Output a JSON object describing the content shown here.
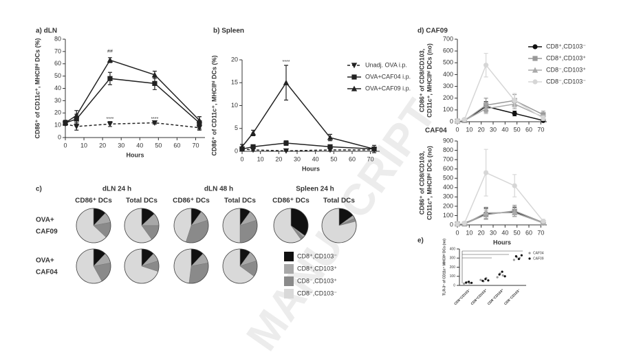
{
  "watermark": "MANUSCRIPT",
  "chart_data": [
    {
      "type": "line",
      "title": "a) dLN",
      "x": [
        0,
        6,
        24,
        48,
        72
      ],
      "xlim": [
        0,
        75
      ],
      "xticks": [
        0,
        10,
        20,
        30,
        40,
        50,
        60,
        70
      ],
      "ylim": [
        0,
        80
      ],
      "yticks": [
        0,
        10,
        20,
        30,
        40,
        50,
        60,
        70,
        80
      ],
      "xlabel": "Hours",
      "ylabel": [
        "CD86⁺ of CD11c⁺, MHCIIʰⁱ DCs (%)"
      ],
      "legend": false,
      "series": [
        {
          "name": "Unadj. OVA i.p.",
          "color": "#222222",
          "dash": true,
          "marker": "triangle-down",
          "values": [
            11,
            9,
            11,
            12,
            8
          ],
          "errors": [
            1,
            3,
            2,
            1,
            2
          ]
        },
        {
          "name": "OVA+CAF04 i.p.",
          "color": "#222222",
          "dash": false,
          "marker": "square",
          "values": [
            12,
            15,
            48,
            44,
            12
          ],
          "errors": [
            2,
            4,
            5,
            5,
            5
          ]
        },
        {
          "name": "OVA+CAF09 i.p.",
          "color": "#222222",
          "dash": false,
          "marker": "triangle",
          "values": [
            12,
            18,
            63,
            51,
            14
          ],
          "errors": [
            2,
            4,
            2,
            3,
            3
          ]
        }
      ],
      "annotations": [
        {
          "text": "##",
          "x": 24,
          "y": 70
        },
        {
          "text": "****",
          "x": 24,
          "y": 15
        },
        {
          "text": "****",
          "x": 48,
          "y": 15
        }
      ]
    },
    {
      "type": "line",
      "title": "b) Spleen",
      "x": [
        0,
        6,
        24,
        48,
        72
      ],
      "xlim": [
        0,
        75
      ],
      "xticks": [
        0,
        10,
        20,
        30,
        40,
        50,
        60,
        70
      ],
      "ylim": [
        0,
        20
      ],
      "yticks": [
        0,
        5,
        10,
        15,
        20
      ],
      "xlabel": "Hours",
      "ylabel": [
        "CD86⁺ of CD11c⁺, MHCIIʰⁱ DCs (%)"
      ],
      "legend": true,
      "series": [
        {
          "name": "Unadj. OVA i.p.",
          "color": "#222222",
          "dash": true,
          "marker": "triangle-down",
          "values": [
            0.5,
            0.3,
            0.1,
            0.3,
            0.3
          ],
          "errors": [
            0.3,
            0.2,
            0.1,
            0.2,
            0.2
          ]
        },
        {
          "name": "OVA+CAF04 i.p.",
          "color": "#222222",
          "dash": false,
          "marker": "square",
          "values": [
            0.5,
            1,
            1.8,
            1,
            0.5
          ],
          "errors": [
            0.3,
            0.3,
            0.5,
            0.4,
            0.3
          ]
        },
        {
          "name": "OVA+CAF09 i.p.",
          "color": "#222222",
          "dash": false,
          "marker": "triangle",
          "values": [
            1,
            4,
            15,
            3,
            0.5
          ],
          "errors": [
            0.5,
            0.6,
            3.8,
            0.7,
            0.8
          ]
        }
      ],
      "annotations": [
        {
          "text": "****",
          "x": 24,
          "y": 19.5
        }
      ]
    },
    {
      "type": "line",
      "title": "d) CAF09",
      "x": [
        0,
        6,
        24,
        48,
        72
      ],
      "xlim": [
        0,
        75
      ],
      "xticks": [
        0,
        10,
        20,
        30,
        40,
        50,
        60,
        70
      ],
      "ylim": [
        0,
        700
      ],
      "yticks": [
        0,
        100,
        200,
        300,
        400,
        500,
        600,
        700
      ],
      "ylabel": [
        "CD86⁺ of CD8/CD103,",
        "CD11c⁺, MHCIIʰⁱ DCs (no)"
      ],
      "legend": true,
      "series": [
        {
          "name": "CD8⁺,CD103⁻",
          "color": "#111111",
          "dash": false,
          "marker": "circle",
          "values": [
            5,
            10,
            130,
            70,
            10
          ],
          "errors": [
            3,
            5,
            40,
            20,
            5
          ]
        },
        {
          "name": "CD8⁺,CD103⁺",
          "color": "#999999",
          "dash": false,
          "marker": "square",
          "values": [
            5,
            10,
            140,
            180,
            60
          ],
          "errors": [
            3,
            5,
            60,
            50,
            30
          ]
        },
        {
          "name": "CD8⁻,CD103⁺",
          "color": "#aaaaaa",
          "dash": false,
          "marker": "triangle",
          "values": [
            5,
            10,
            110,
            150,
            40
          ],
          "errors": [
            3,
            5,
            40,
            40,
            20
          ]
        },
        {
          "name": "CD8⁻,CD103⁻",
          "color": "#d6d6d6",
          "dash": false,
          "marker": "circle",
          "values": [
            5,
            20,
            480,
            180,
            30
          ],
          "errors": [
            3,
            10,
            100,
            60,
            20
          ]
        }
      ]
    },
    {
      "type": "line",
      "title": "CAF04",
      "x": [
        0,
        6,
        24,
        48,
        72
      ],
      "xlim": [
        0,
        75
      ],
      "xticks": [
        0,
        10,
        20,
        30,
        40,
        50,
        60,
        70
      ],
      "ylim": [
        0,
        900
      ],
      "yticks": [
        0,
        100,
        200,
        300,
        400,
        500,
        600,
        700,
        800,
        900
      ],
      "xlabel": "Hours",
      "ylabel": [
        "CD86⁺ of CD8/CD103,",
        "CD11c⁺, MHCIIʰⁱ DCs (no)"
      ],
      "legend": false,
      "series": [
        {
          "name": "CD8⁺,CD103⁻",
          "color": "#111111",
          "dash": false,
          "marker": "circle",
          "values": [
            10,
            15,
            120,
            140,
            20
          ],
          "errors": [
            5,
            5,
            60,
            50,
            10
          ]
        },
        {
          "name": "CD8⁺,CD103⁺",
          "color": "#999999",
          "dash": false,
          "marker": "square",
          "values": [
            10,
            10,
            110,
            150,
            25
          ],
          "errors": [
            5,
            5,
            50,
            60,
            10
          ]
        },
        {
          "name": "CD8⁻,CD103⁺",
          "color": "#aaaaaa",
          "dash": false,
          "marker": "triangle",
          "values": [
            10,
            10,
            130,
            130,
            20
          ],
          "errors": [
            5,
            5,
            60,
            40,
            10
          ]
        },
        {
          "name": "CD8⁻,CD103⁻",
          "color": "#d6d6d6",
          "dash": false,
          "marker": "circle",
          "values": [
            10,
            20,
            560,
            420,
            40
          ],
          "errors": [
            5,
            10,
            250,
            120,
            20
          ]
        }
      ]
    },
    {
      "type": "pie",
      "title": "c)",
      "groups": [
        "dLN 24 h",
        "dLN 48 h",
        "Spleen 24 h"
      ],
      "subgroups": [
        "CD86⁺ DCs",
        "Total DCs",
        "CD86⁺ DCs",
        "Total DCs",
        "CD86⁺ DCs",
        "Total DCs"
      ],
      "categories": [
        "CD8⁺,CD103⁻",
        "CD8⁺,CD103⁺",
        "CD8⁻,CD103⁺",
        "CD8⁻,CD103⁻"
      ],
      "colors": [
        "#111111",
        "#a8a8a8",
        "#8a8a8a",
        "#d9d9d9"
      ],
      "rows": [
        {
          "name": [
            "OVA+",
            "CAF09"
          ],
          "pies": [
            [
              12,
              10,
              15,
              63
            ],
            [
              13,
              12,
              15,
              60
            ],
            [
              10,
              10,
              35,
              45
            ],
            [
              10,
              10,
              30,
              50
            ],
            [
              35,
              2,
              3,
              60
            ],
            [
              15,
              3,
              3,
              79
            ]
          ]
        },
        {
          "name": [
            "OVA+",
            "CAF04"
          ],
          "pies": [
            [
              12,
              10,
              20,
              58
            ],
            [
              12,
              8,
              10,
              70
            ],
            [
              12,
              10,
              30,
              48
            ],
            [
              10,
              10,
              15,
              65
            ]
          ]
        }
      ]
    },
    {
      "type": "scatter",
      "title": "e)",
      "categories": [
        "CD8⁺CD103⁻",
        "CD8⁺CD103⁺",
        "CD8⁻CD103⁺",
        "CD8⁻CD103⁻"
      ],
      "ylim": [
        0,
        400
      ],
      "yticks": [
        0,
        100,
        200,
        300,
        400
      ],
      "ylabel": [
        "TLR-3⁺ of CD11c⁺ MHCIIʰⁱ DCs (no)"
      ],
      "series": [
        {
          "name": "CAF04",
          "color": "#999999",
          "values": [
            [
              20,
              35,
              25
            ],
            [
              60,
              45,
              80
            ],
            [
              90,
              130,
              110
            ],
            [
              280,
              310,
              300
            ]
          ]
        },
        {
          "name": "CAF09",
          "color": "#111111",
          "values": [
            [
              30,
              40,
              28
            ],
            [
              50,
              70,
              55
            ],
            [
              120,
              150,
              100
            ],
            [
              320,
              290,
              330
            ]
          ]
        }
      ]
    }
  ]
}
